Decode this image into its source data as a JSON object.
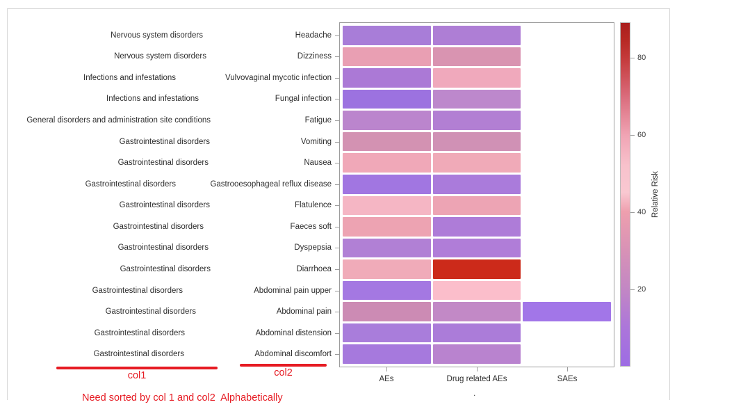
{
  "annotations": {
    "col1_label": "col1",
    "col2_label": "col2",
    "sort_note": "Need sorted by col 1 and col2  Alphabetically",
    "red_color": "#e61b23"
  },
  "chart_data": {
    "type": "heatmap",
    "title": "",
    "categories": [
      "AEs",
      "Drug related AEs",
      "SAEs"
    ],
    "x_axis_note": ".",
    "colorbar": {
      "title": "Relative Risk",
      "ticks": [
        80,
        60,
        40,
        20
      ],
      "min": 0,
      "max": 89,
      "gradient_low": "#9d6ce4",
      "gradient_mid": "#f9c8d1",
      "gradient_high": "#aa1f1e"
    },
    "rows": [
      {
        "col1": "Nervous system disorders",
        "col2": "Headache",
        "values": [
          12,
          13,
          null
        ],
        "colors": [
          "#a87dd8",
          "#ae7ed5",
          null
        ]
      },
      {
        "col1": "Nervous system disorders",
        "col2": "Dizziness",
        "values": [
          37,
          31,
          null
        ],
        "colors": [
          "#e99fb3",
          "#d994b1",
          null
        ]
      },
      {
        "col1": "Infections and infestations",
        "col2": "Vulvovaginal mycotic infection",
        "values": [
          12,
          42,
          null
        ],
        "colors": [
          "#ab79d6",
          "#f0a9bc",
          null
        ]
      },
      {
        "col1": "Infections and infestations",
        "col2": "Fungal infection",
        "values": [
          6,
          20,
          null
        ],
        "colors": [
          "#9c72e0",
          "#bd88cc",
          null
        ]
      },
      {
        "col1": "General disorders and administration site conditions",
        "col2": "Fatigue",
        "values": [
          19,
          15,
          null
        ],
        "colors": [
          "#bb85cd",
          "#b27fd3",
          null
        ]
      },
      {
        "col1": "Gastrointestinal disorders",
        "col2": "Vomiting",
        "values": [
          29,
          28,
          null
        ],
        "colors": [
          "#d392b2",
          "#d091b5",
          null
        ]
      },
      {
        "col1": "Gastrointestinal disorders",
        "col2": "Nausea",
        "values": [
          41,
          41,
          null
        ],
        "colors": [
          "#f0a8b8",
          "#f0aab8",
          null
        ]
      },
      {
        "col1": "Gastrointestinal disorders",
        "col2": "Gastrooesophageal reflux disease",
        "values": [
          9,
          12,
          null
        ],
        "colors": [
          "#a176e1",
          "#aa7bdb",
          null
        ]
      },
      {
        "col1": "Gastrointestinal disorders",
        "col2": "Flatulence",
        "values": [
          46,
          40,
          null
        ],
        "colors": [
          "#f5b6c4",
          "#eda4b4",
          null
        ]
      },
      {
        "col1": "Gastrointestinal disorders",
        "col2": "Faeces soft",
        "values": [
          39,
          13,
          null
        ],
        "colors": [
          "#eda3b2",
          "#ae7cd8",
          null
        ]
      },
      {
        "col1": "Gastrointestinal disorders",
        "col2": "Dyspepsia",
        "values": [
          15,
          14,
          null
        ],
        "colors": [
          "#b180d5",
          "#b07dd8",
          null
        ]
      },
      {
        "col1": "Gastrointestinal disorders",
        "col2": "Diarrhoea",
        "values": [
          42,
          87,
          null
        ],
        "colors": [
          "#f0abb9",
          "#cc2a1a",
          null
        ]
      },
      {
        "col1": "Gastrointestinal disorders",
        "col2": "Abdominal pain upper",
        "values": [
          8,
          49,
          null
        ],
        "colors": [
          "#a478e2",
          "#fbbecb",
          null
        ]
      },
      {
        "col1": "Gastrointestinal disorders",
        "col2": "Abdominal pain",
        "values": [
          26,
          22,
          5
        ],
        "colors": [
          "#cc8bb4",
          "#c289c6",
          "#a276e8"
        ]
      },
      {
        "col1": "Gastrointestinal disorders",
        "col2": "Abdominal distension",
        "values": [
          12,
          12,
          null
        ],
        "colors": [
          "#a97ddb",
          "#ab7cd9",
          null
        ]
      },
      {
        "col1": "Gastrointestinal disorders",
        "col2": "Abdominal discomfort",
        "values": [
          10,
          17,
          null
        ],
        "colors": [
          "#a679dd",
          "#b983cf",
          null
        ]
      }
    ]
  }
}
